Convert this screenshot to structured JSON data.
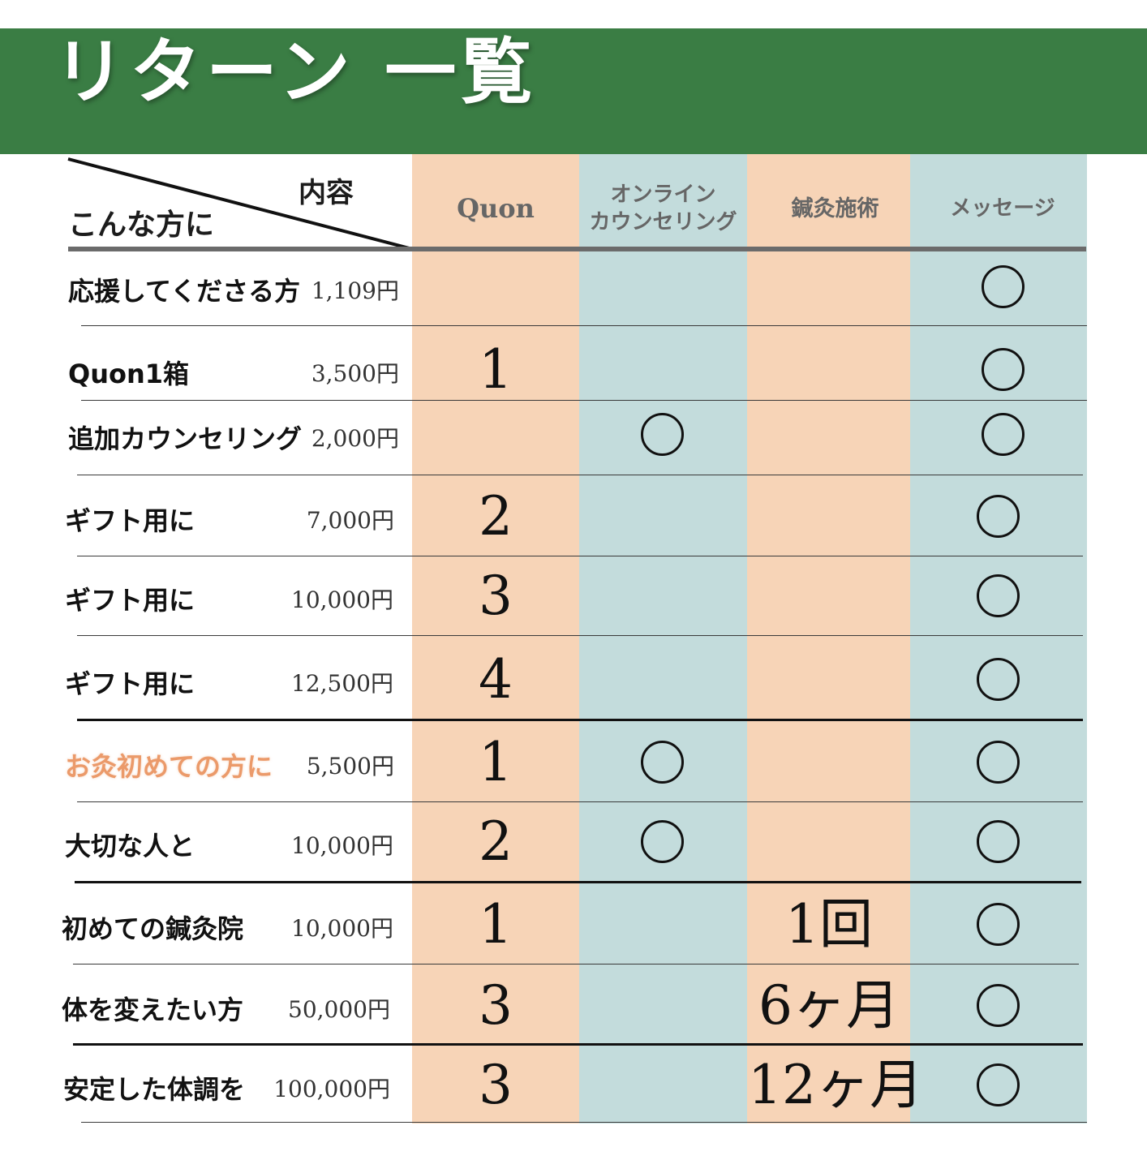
{
  "title": "リターン 一覧",
  "header": {
    "content_label": "内容",
    "target_label": "こんな方に",
    "columns": [
      {
        "lines": [
          "Quon"
        ],
        "color": "#f7d4b7"
      },
      {
        "lines": [
          "オンライン",
          "カウンセリング"
        ],
        "color": "#c3dcdc"
      },
      {
        "lines": [
          "鍼灸施術"
        ],
        "color": "#f7d4b7"
      },
      {
        "lines": [
          "メッセージ"
        ],
        "color": "#c3dcdc"
      }
    ]
  },
  "colors": {
    "banner": "#3a7d44",
    "peach": "#f7d4b7",
    "teal": "#c3dcdc",
    "accent_text": "#eb9a6a"
  },
  "rows": [
    {
      "label": "応援してくださる方",
      "price": "1,109円",
      "quon": "",
      "online": false,
      "acu": "",
      "message": true
    },
    {
      "label": "Quon1箱",
      "price": "3,500円",
      "quon": "1",
      "online": false,
      "acu": "",
      "message": true
    },
    {
      "label": "追加カウンセリング",
      "price": "2,000円",
      "quon": "",
      "online": true,
      "acu": "",
      "message": true
    },
    {
      "label": "ギフト用に",
      "price": "7,000円",
      "quon": "2",
      "online": false,
      "acu": "",
      "message": true
    },
    {
      "label": "ギフト用に",
      "price": "10,000円",
      "quon": "3",
      "online": false,
      "acu": "",
      "message": true
    },
    {
      "label": "ギフト用に",
      "price": "12,500円",
      "quon": "4",
      "online": false,
      "acu": "",
      "message": true
    },
    {
      "label": "お灸初めての方に",
      "price": "5,500円",
      "quon": "1",
      "online": true,
      "acu": "",
      "message": true,
      "accent": true
    },
    {
      "label": "大切な人と",
      "price": "10,000円",
      "quon": "2",
      "online": true,
      "acu": "",
      "message": true
    },
    {
      "label": "初めての鍼灸院",
      "price": "10,000円",
      "quon": "1",
      "online": false,
      "acu": "1回",
      "message": true
    },
    {
      "label": "体を変えたい方",
      "price": "50,000円",
      "quon": "3",
      "online": false,
      "acu": "6ヶ月",
      "message": true
    },
    {
      "label": "安定した体調を",
      "price": "100,000円",
      "quon": "3",
      "online": false,
      "acu": "12ヶ月",
      "message": true
    }
  ]
}
